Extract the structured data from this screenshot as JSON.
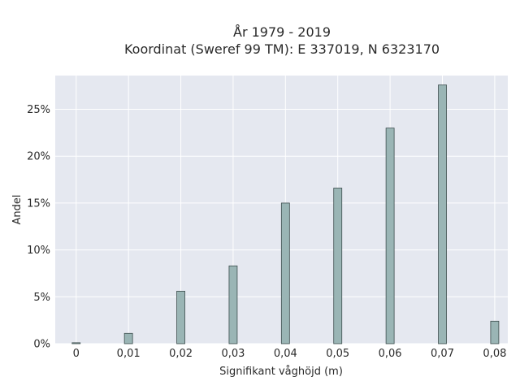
{
  "chart_data": {
    "type": "bar",
    "title": "År 1979 - 2019",
    "subtitle": "Koordinat (Sweref 99 TM): E 337019, N 6323170",
    "xlabel": "Signifikant våghöjd (m)",
    "ylabel": "Andel",
    "x": [
      0,
      0.01,
      0.02,
      0.03,
      0.04,
      0.05,
      0.06,
      0.07,
      0.08
    ],
    "x_tick_labels": [
      "0",
      "0,01",
      "0,02",
      "0,03",
      "0,04",
      "0,05",
      "0,06",
      "0,07",
      "0,08"
    ],
    "values": [
      0.1,
      1.1,
      5.6,
      8.3,
      15.0,
      16.6,
      23.0,
      27.6,
      2.4
    ],
    "y_ticks": [
      0,
      5,
      10,
      15,
      20,
      25
    ],
    "y_tick_labels": [
      "0%",
      "5%",
      "10%",
      "15%",
      "20%",
      "25%"
    ],
    "ylim": [
      0,
      28.6
    ],
    "xlim": [
      -0.004,
      0.0825
    ],
    "grid": true,
    "colors": {
      "bar_fill": "#9ab5b5",
      "bar_stroke": "#3d4d4d",
      "plot_bg": "#e5e8f0",
      "grid": "#ffffff"
    }
  }
}
